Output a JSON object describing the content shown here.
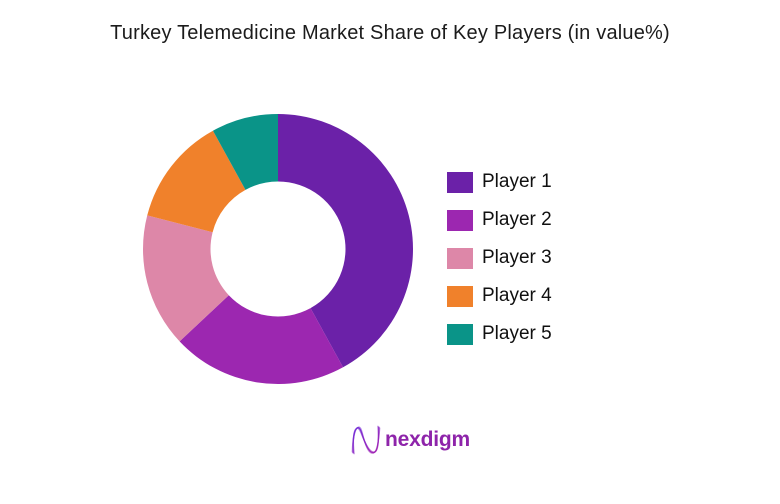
{
  "chart_data": {
    "type": "pie",
    "subtype": "donut",
    "title": "Turkey Telemedicine Market Share of Key Players (in value%)",
    "categories": [
      "Player 1",
      "Player 2",
      "Player 3",
      "Player 4",
      "Player 5"
    ],
    "values": [
      42,
      21,
      16,
      13,
      8
    ],
    "unit": "percent of market value",
    "colors": [
      "#6B21A8",
      "#9C27B0",
      "#DD87A8",
      "#F0812B",
      "#0A9488"
    ],
    "start_angle_deg": 0,
    "direction": "clockwise",
    "inner_radius_ratio": 0.5,
    "legend_position": "right",
    "data_labels": false,
    "background": "#FFFFFF"
  },
  "legend": {
    "items": [
      {
        "label": "Player 1",
        "color": "#6B21A8"
      },
      {
        "label": "Player 2",
        "color": "#9C27B0"
      },
      {
        "label": "Player 3",
        "color": "#DD87A8"
      },
      {
        "label": "Player 4",
        "color": "#F0812B"
      },
      {
        "label": "Player 5",
        "color": "#0A9488"
      }
    ]
  },
  "footer": {
    "brand": "nexdigm",
    "brand_color": "#8E24AA",
    "logo_icon": "nexdigm-n-scribble-icon"
  }
}
